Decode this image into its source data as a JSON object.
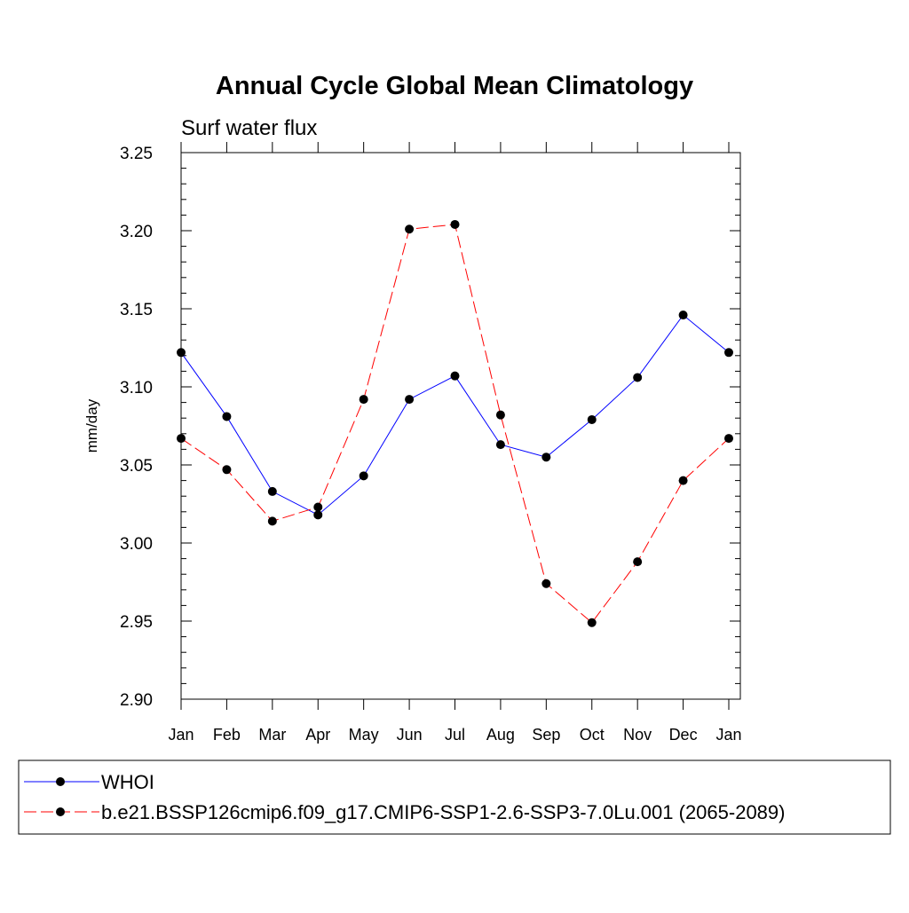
{
  "chart_data": {
    "type": "line",
    "title": "Annual Cycle Global Mean Climatology",
    "subtitle": "Surf water flux",
    "xlabel": "",
    "ylabel": "mm/day",
    "categories": [
      "Jan",
      "Feb",
      "Mar",
      "Apr",
      "May",
      "Jun",
      "Jul",
      "Aug",
      "Sep",
      "Oct",
      "Nov",
      "Dec",
      "Jan"
    ],
    "ylim": [
      2.9,
      3.25
    ],
    "yticks": [
      "2.90",
      "2.95",
      "3.00",
      "3.05",
      "3.10",
      "3.15",
      "3.20",
      "3.25"
    ],
    "grid": false,
    "legend_position": "bottom",
    "series": [
      {
        "name": "WHOI",
        "color": "#0000ff",
        "dash": "solid",
        "values": [
          3.122,
          3.081,
          3.033,
          3.018,
          3.043,
          3.092,
          3.107,
          3.063,
          3.055,
          3.079,
          3.106,
          3.146,
          3.122
        ]
      },
      {
        "name": "b.e21.BSSP126cmip6.f09_g17.CMIP6-SSP1-2.6-SSP3-7.0Lu.001 (2065-2089)",
        "color": "#ff0000",
        "dash": "dashed",
        "values": [
          3.067,
          3.047,
          3.014,
          3.023,
          3.092,
          3.201,
          3.204,
          3.082,
          2.974,
          2.949,
          2.988,
          3.04,
          3.067
        ]
      }
    ]
  }
}
